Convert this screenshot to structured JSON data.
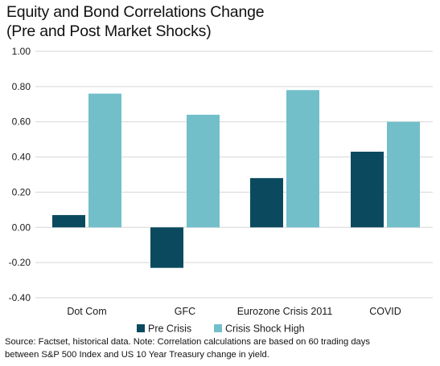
{
  "title": {
    "line1": "Equity and Bond Correlations Change",
    "line2": "(Pre and Post Market Shocks)"
  },
  "footnote": {
    "line1": "Source: Factset, historical data. Note: Correlation calculations are based on 60 trading days",
    "line2": "between S&P 500 Index and US 10 Year Treasury change in yield."
  },
  "chart_data": {
    "type": "bar",
    "title": "Equity and Bond Correlations Change (Pre and Post Market Shocks)",
    "categories": [
      "Dot Com",
      "GFC",
      "Eurozone Crisis 2011",
      "COVID"
    ],
    "series": [
      {
        "name": "Pre Crisis",
        "color": "#0b4a5e",
        "values": [
          0.07,
          -0.23,
          0.28,
          0.43
        ]
      },
      {
        "name": "Crisis Shock High",
        "color": "#72bfca",
        "values": [
          0.76,
          0.64,
          0.78,
          0.6
        ]
      }
    ],
    "ylim": [
      -0.4,
      1.0
    ],
    "yticks": [
      "1.00",
      "0.80",
      "0.60",
      "0.40",
      "0.20",
      "0.00",
      "-0.20",
      "-0.40"
    ],
    "ytick_values": [
      1.0,
      0.8,
      0.6,
      0.4,
      0.2,
      0.0,
      -0.2,
      -0.4
    ],
    "grid": true,
    "legend": "bottom-center"
  }
}
